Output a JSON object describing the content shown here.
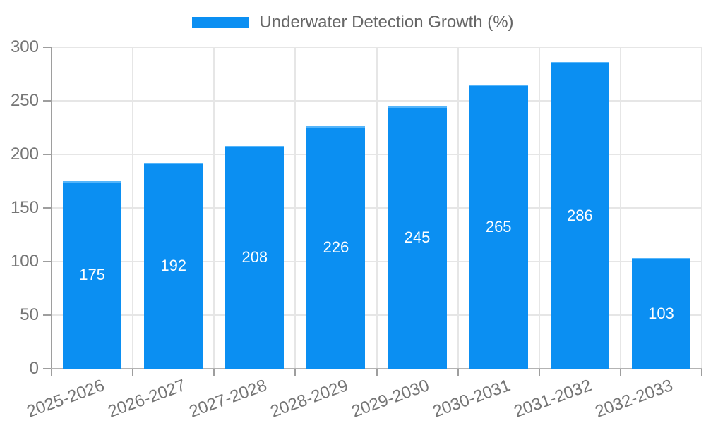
{
  "chart_data": {
    "type": "bar",
    "title": "",
    "legend": {
      "label": "Underwater Detection Growth (%)",
      "position": "top"
    },
    "categories": [
      "2025-2026",
      "2026-2027",
      "2027-2028",
      "2028-2029",
      "2029-2030",
      "2030-2031",
      "2031-2032",
      "2032-2033"
    ],
    "values": [
      175,
      192,
      208,
      226,
      245,
      265,
      286,
      103
    ],
    "xlabel": "",
    "ylabel": "",
    "ylim": [
      0,
      300
    ],
    "yticks": [
      0,
      50,
      100,
      150,
      200,
      250,
      300
    ],
    "grid": true,
    "legend_position": "top",
    "colors": {
      "bar": "#0b8ff2",
      "bar_top_edge": "#55b5fa",
      "bar_value_text": "#ffffff",
      "grid": "#e6e6e6",
      "axis": "#9e9e9e",
      "baseline": "#b3b3b3",
      "tick_text": "#757575",
      "legend_text": "#666666"
    }
  }
}
